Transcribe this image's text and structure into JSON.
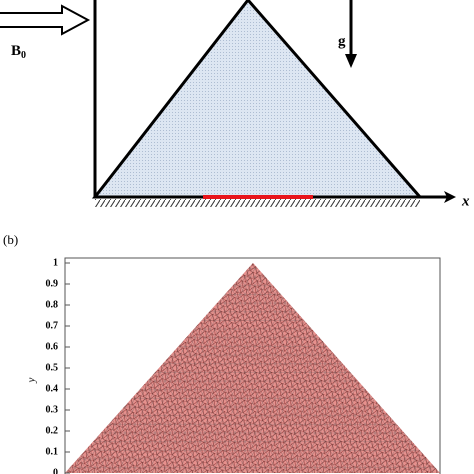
{
  "panel_a": {
    "field_label": "B",
    "field_subscript": "0",
    "gravity_label": "g",
    "x_axis_label": "x"
  },
  "panel_b": {
    "label": "(b)",
    "y_axis_label": "y",
    "ylim": [
      0,
      1
    ],
    "yticks": [
      0,
      0.1,
      0.2,
      0.3,
      0.4,
      0.5,
      0.6,
      0.7,
      0.8,
      0.9,
      1
    ]
  }
}
